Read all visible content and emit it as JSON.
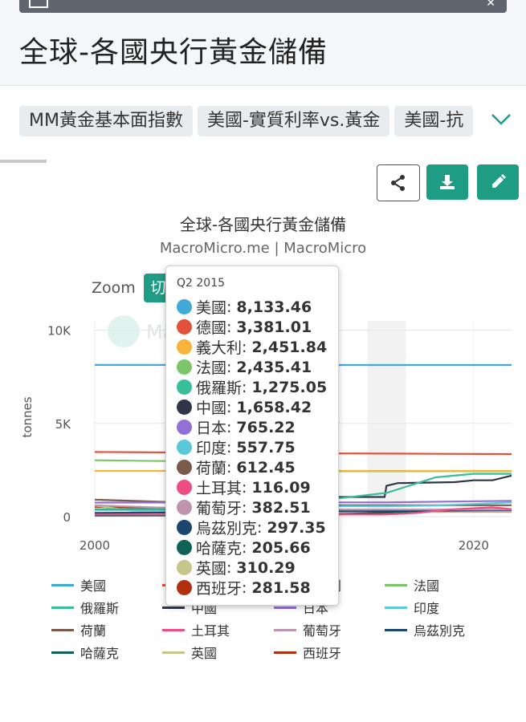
{
  "page": {
    "title": "全球-各國央行黃金儲備",
    "tabs": [
      "MM黃金基本面指數",
      "美國-實質利率vs.黃金",
      "美國-抗"
    ]
  },
  "toolbar": {
    "icons": [
      "share-icon",
      "download-icon",
      "edit-icon"
    ]
  },
  "chart": {
    "title": "全球-各國央行黃金儲備",
    "subtitle": "MacroMicro.me | MacroMicro",
    "zoom_label": "Zoom",
    "zoom_button": "切",
    "watermark": "MacroMicro"
  },
  "tooltip": {
    "date": "Q2 2015",
    "rows": [
      {
        "name": "美國",
        "value": "8,133.46",
        "color": "#3fa9d8"
      },
      {
        "name": "德國",
        "value": "3,381.01",
        "color": "#e2513b"
      },
      {
        "name": "義大利",
        "value": "2,451.84",
        "color": "#f6b53a"
      },
      {
        "name": "法國",
        "value": "2,435.41",
        "color": "#7cc66a"
      },
      {
        "name": "俄羅斯",
        "value": "1,275.05",
        "color": "#36bf98"
      },
      {
        "name": "中國",
        "value": "1,658.42",
        "color": "#2e3648"
      },
      {
        "name": "日本",
        "value": "765.22",
        "color": "#9270d8"
      },
      {
        "name": "印度",
        "value": "557.75",
        "color": "#5ac8d8"
      },
      {
        "name": "荷蘭",
        "value": "612.45",
        "color": "#7a5a4a"
      },
      {
        "name": "土耳其",
        "value": "116.09",
        "color": "#ee4c82"
      },
      {
        "name": "葡萄牙",
        "value": "382.51",
        "color": "#bf94ae"
      },
      {
        "name": "烏茲別克",
        "value": "297.35",
        "color": "#1a4670"
      },
      {
        "name": "哈薩克",
        "value": "205.66",
        "color": "#0f6355"
      },
      {
        "name": "英國",
        "value": "310.29",
        "color": "#c6c58a"
      },
      {
        "name": "西班牙",
        "value": "281.58",
        "color": "#b0300e"
      }
    ]
  },
  "chart_data": {
    "type": "line",
    "title": "全球-各國央行黃金儲備",
    "subtitle": "MacroMicro.me | MacroMicro",
    "ylabel": "tonnes",
    "xlim": [
      2000,
      2022
    ],
    "ylim": [
      0,
      10500
    ],
    "x_ticks": [
      "2000",
      "2020"
    ],
    "y_ticks": [
      "0",
      "5K",
      "10K"
    ],
    "grid": true,
    "legend_position": "bottom",
    "highlight_x": 2015.4,
    "highlight_label": "Q2 2015",
    "series": [
      {
        "name": "美國",
        "color": "#3fa9d8",
        "points": [
          [
            2000,
            8138
          ],
          [
            2015.4,
            8133
          ],
          [
            2022,
            8133
          ]
        ]
      },
      {
        "name": "德國",
        "color": "#e2513b",
        "points": [
          [
            2000,
            3469
          ],
          [
            2012,
            3391
          ],
          [
            2015.4,
            3381
          ],
          [
            2018,
            3370
          ],
          [
            2022,
            3355
          ]
        ]
      },
      {
        "name": "義大利",
        "color": "#f6b53a",
        "points": [
          [
            2000,
            2452
          ],
          [
            2015.4,
            2452
          ],
          [
            2022,
            2452
          ]
        ]
      },
      {
        "name": "法國",
        "color": "#7cc66a",
        "points": [
          [
            2000,
            3024
          ],
          [
            2004,
            2980
          ],
          [
            2008,
            2550
          ],
          [
            2011,
            2435
          ],
          [
            2015.4,
            2435
          ],
          [
            2022,
            2437
          ]
        ]
      },
      {
        "name": "俄羅斯",
        "color": "#36bf98",
        "points": [
          [
            2000,
            400
          ],
          [
            2006,
            400
          ],
          [
            2010,
            700
          ],
          [
            2013,
            1000
          ],
          [
            2015.4,
            1275
          ],
          [
            2018,
            2110
          ],
          [
            2020,
            2298
          ],
          [
            2022,
            2298
          ]
        ]
      },
      {
        "name": "中國",
        "color": "#2e3648",
        "points": [
          [
            2000,
            395
          ],
          [
            2009,
            395
          ],
          [
            2009.3,
            1054
          ],
          [
            2015.3,
            1054
          ],
          [
            2015.4,
            1658
          ],
          [
            2016,
            1800
          ],
          [
            2019,
            1850
          ],
          [
            2020,
            1948
          ],
          [
            2021,
            1948
          ],
          [
            2022,
            2200
          ]
        ]
      },
      {
        "name": "日本",
        "color": "#9270d8",
        "points": [
          [
            2000,
            754
          ],
          [
            2015.4,
            765
          ],
          [
            2022,
            846
          ]
        ]
      },
      {
        "name": "印度",
        "color": "#5ac8d8",
        "points": [
          [
            2000,
            358
          ],
          [
            2009,
            358
          ],
          [
            2010,
            558
          ],
          [
            2015.4,
            558
          ],
          [
            2018,
            600
          ],
          [
            2020,
            680
          ],
          [
            2022,
            760
          ]
        ]
      },
      {
        "name": "荷蘭",
        "color": "#7a5a4a",
        "points": [
          [
            2000,
            912
          ],
          [
            2004,
            780
          ],
          [
            2008,
            612
          ],
          [
            2015.4,
            612
          ],
          [
            2022,
            612
          ]
        ]
      },
      {
        "name": "土耳其",
        "color": "#ee4c82",
        "points": [
          [
            2000,
            116
          ],
          [
            2015.4,
            116
          ],
          [
            2017,
            200
          ],
          [
            2019,
            400
          ],
          [
            2021,
            500
          ],
          [
            2022,
            400
          ]
        ]
      },
      {
        "name": "葡萄牙",
        "color": "#bf94ae",
        "points": [
          [
            2000,
            607
          ],
          [
            2006,
            400
          ],
          [
            2008,
            383
          ],
          [
            2015.4,
            383
          ],
          [
            2022,
            383
          ]
        ]
      },
      {
        "name": "烏茲別克",
        "color": "#1a4670",
        "points": [
          [
            2000,
            200
          ],
          [
            2015.4,
            297
          ],
          [
            2020,
            340
          ],
          [
            2022,
            350
          ]
        ]
      },
      {
        "name": "哈薩克",
        "color": "#0f6355",
        "points": [
          [
            2000,
            60
          ],
          [
            2010,
            70
          ],
          [
            2015.4,
            206
          ],
          [
            2019,
            380
          ],
          [
            2022,
            390
          ]
        ]
      },
      {
        "name": "英國",
        "color": "#c6c58a",
        "points": [
          [
            2000,
            600
          ],
          [
            2002,
            310
          ],
          [
            2015.4,
            310
          ],
          [
            2022,
            310
          ]
        ]
      },
      {
        "name": "西班牙",
        "color": "#b0300e",
        "points": [
          [
            2000,
            523
          ],
          [
            2005,
            450
          ],
          [
            2008,
            282
          ],
          [
            2015.4,
            282
          ],
          [
            2022,
            282
          ]
        ]
      }
    ]
  }
}
